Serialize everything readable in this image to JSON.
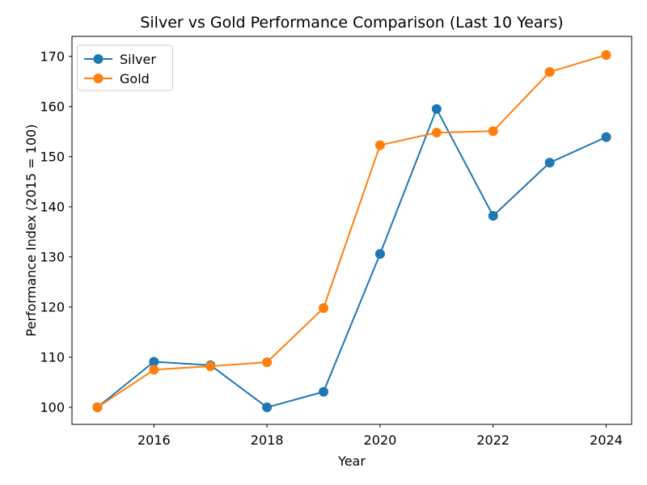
{
  "figure": {
    "background": "#ffffff",
    "text_color": "#000000",
    "spine_color": "#000000",
    "legend_border_color": "#cccccc"
  },
  "chart_data": {
    "type": "line",
    "title": "Silver vs Gold Performance Comparison (Last 10 Years)",
    "xlabel": "Year",
    "ylabel": "Performance Index (2015 = 100)",
    "x": [
      2015,
      2016,
      2017,
      2018,
      2019,
      2020,
      2021,
      2022,
      2023,
      2024
    ],
    "series": [
      {
        "name": "Silver",
        "color": "#1f77b4",
        "marker": "circle",
        "values": [
          100.0,
          109.1,
          108.4,
          100.0,
          103.1,
          130.6,
          159.5,
          138.2,
          148.8,
          153.9
        ]
      },
      {
        "name": "Gold",
        "color": "#ff7f0e",
        "marker": "circle",
        "values": [
          100.0,
          107.5,
          108.2,
          109.0,
          119.8,
          152.3,
          154.8,
          155.1,
          166.9,
          170.3
        ]
      }
    ],
    "xticks": [
      2016,
      2018,
      2020,
      2022,
      2024
    ],
    "yticks": [
      100,
      110,
      120,
      130,
      140,
      150,
      160,
      170
    ],
    "xlim": [
      2014.55,
      2024.45
    ],
    "ylim": [
      96.6,
      174.0
    ],
    "legend": {
      "position": "upper-left",
      "labels": [
        "Silver",
        "Gold"
      ]
    },
    "grid": false
  }
}
